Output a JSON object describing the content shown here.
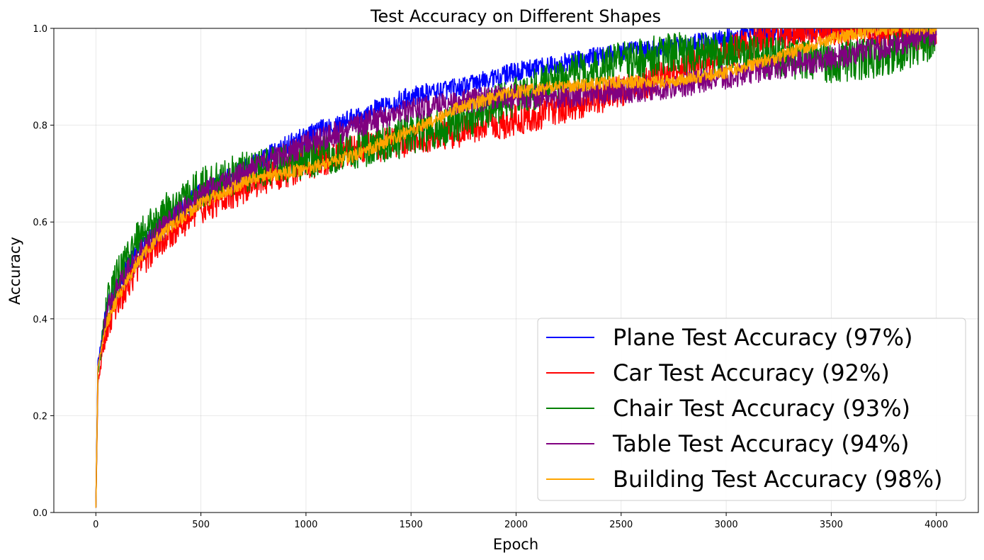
{
  "chart_data": {
    "type": "line",
    "title": "Test Accuracy on Different Shapes",
    "xlabel": "Epoch",
    "ylabel": "Accuracy",
    "xlim": [
      -200,
      4200
    ],
    "ylim": [
      0.0,
      1.0
    ],
    "xticks": [
      0,
      500,
      1000,
      1500,
      2000,
      2500,
      3000,
      3500,
      4000
    ],
    "yticks": [
      0.0,
      0.2,
      0.4,
      0.6,
      0.8,
      1.0
    ],
    "xtick_labels": [
      "0",
      "500",
      "1000",
      "1500",
      "2000",
      "2500",
      "3000",
      "3500",
      "4000"
    ],
    "ytick_labels": [
      "0.0",
      "0.2",
      "0.4",
      "0.6",
      "0.8",
      "1.0"
    ],
    "grid": true,
    "legend_position": "lower-right",
    "series": [
      {
        "name": "Plane Test Accuracy (97%)",
        "color": "#0000ff",
        "noise": 0.012,
        "x": [
          0,
          10,
          50,
          100,
          200,
          300,
          500,
          750,
          1000,
          1250,
          1500,
          1750,
          2000,
          2250,
          2500,
          2750,
          3000,
          3250,
          3500,
          3750,
          4000
        ],
        "y": [
          0.01,
          0.31,
          0.42,
          0.47,
          0.54,
          0.59,
          0.66,
          0.72,
          0.78,
          0.82,
          0.86,
          0.88,
          0.91,
          0.93,
          0.95,
          0.96,
          0.98,
          0.99,
          1.0,
          1.0,
          1.0
        ]
      },
      {
        "name": "Car Test Accuracy (92%)",
        "color": "#ff0000",
        "noise": 0.02,
        "x": [
          0,
          10,
          50,
          100,
          200,
          300,
          500,
          750,
          1000,
          1250,
          1500,
          1750,
          2000,
          2250,
          2500,
          2750,
          3000,
          3250,
          3500,
          3750,
          4000
        ],
        "y": [
          0.01,
          0.27,
          0.38,
          0.43,
          0.51,
          0.56,
          0.63,
          0.68,
          0.72,
          0.75,
          0.77,
          0.79,
          0.81,
          0.84,
          0.87,
          0.91,
          0.95,
          0.99,
          1.0,
          0.99,
          0.99
        ]
      },
      {
        "name": "Chair Test Accuracy (93%)",
        "color": "#008000",
        "noise": 0.025,
        "x": [
          0,
          10,
          50,
          100,
          200,
          300,
          500,
          750,
          1000,
          1250,
          1500,
          1750,
          2000,
          2250,
          2500,
          2750,
          3000,
          3250,
          3500,
          3750,
          4000
        ],
        "y": [
          0.01,
          0.29,
          0.42,
          0.48,
          0.56,
          0.61,
          0.67,
          0.71,
          0.73,
          0.75,
          0.78,
          0.81,
          0.86,
          0.9,
          0.93,
          0.95,
          0.95,
          0.94,
          0.93,
          0.94,
          0.98
        ]
      },
      {
        "name": "Table Test Accuracy (94%)",
        "color": "#800080",
        "noise": 0.015,
        "x": [
          0,
          10,
          50,
          100,
          200,
          300,
          500,
          750,
          1000,
          1250,
          1500,
          1750,
          2000,
          2250,
          2500,
          2750,
          3000,
          3250,
          3500,
          3750,
          4000
        ],
        "y": [
          0.01,
          0.3,
          0.41,
          0.46,
          0.53,
          0.58,
          0.66,
          0.71,
          0.76,
          0.8,
          0.83,
          0.85,
          0.86,
          0.86,
          0.87,
          0.88,
          0.9,
          0.92,
          0.94,
          0.96,
          0.99
        ]
      },
      {
        "name": "Building Test Accuracy (98%)",
        "color": "#ffa500",
        "noise": 0.008,
        "x": [
          0,
          10,
          50,
          100,
          200,
          300,
          500,
          750,
          1000,
          1250,
          1500,
          1750,
          2000,
          2250,
          2500,
          2750,
          3000,
          3250,
          3500,
          3750,
          4000
        ],
        "y": [
          0.01,
          0.3,
          0.39,
          0.44,
          0.52,
          0.57,
          0.64,
          0.69,
          0.71,
          0.74,
          0.79,
          0.84,
          0.87,
          0.88,
          0.89,
          0.89,
          0.91,
          0.94,
          0.98,
          1.0,
          1.0
        ]
      }
    ]
  }
}
